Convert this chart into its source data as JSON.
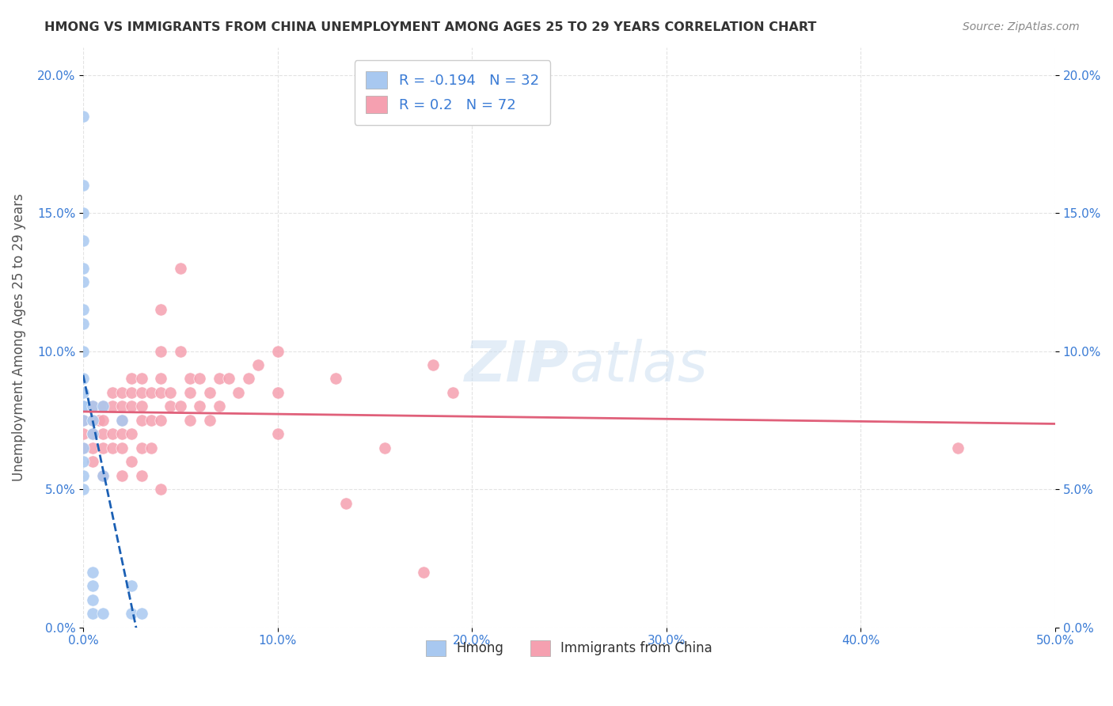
{
  "title": "HMONG VS IMMIGRANTS FROM CHINA UNEMPLOYMENT AMONG AGES 25 TO 29 YEARS CORRELATION CHART",
  "source": "Source: ZipAtlas.com",
  "xlabel": "",
  "ylabel": "Unemployment Among Ages 25 to 29 years",
  "xlim": [
    0.0,
    0.5
  ],
  "ylim": [
    0.0,
    0.21
  ],
  "xticks": [
    0.0,
    0.1,
    0.2,
    0.3,
    0.4,
    0.5
  ],
  "yticks": [
    0.0,
    0.05,
    0.1,
    0.15,
    0.2
  ],
  "xtick_labels": [
    "0.0%",
    "10.0%",
    "20.0%",
    "30.0%",
    "40.0%",
    "50.0%"
  ],
  "ytick_labels": [
    "0.0%",
    "5.0%",
    "10.0%",
    "15.0%",
    "20.0%"
  ],
  "hmong_R": -0.194,
  "hmong_N": 32,
  "china_R": 0.2,
  "china_N": 72,
  "hmong_color": "#a8c8f0",
  "china_color": "#f5a0b0",
  "hmong_line_color": "#1a5fb4",
  "china_line_color": "#e0607a",
  "background_color": "#ffffff",
  "grid_color": "#dddddd",
  "watermark_text": "ZIPatlas",
  "hmong_x": [
    0.0,
    0.0,
    0.0,
    0.0,
    0.0,
    0.0,
    0.0,
    0.0,
    0.0,
    0.0,
    0.0,
    0.0,
    0.0,
    0.0,
    0.0,
    0.0,
    0.0,
    0.0,
    0.005,
    0.005,
    0.005,
    0.005,
    0.005,
    0.005,
    0.005,
    0.01,
    0.01,
    0.01,
    0.02,
    0.025,
    0.025,
    0.03
  ],
  "hmong_y": [
    0.185,
    0.16,
    0.15,
    0.14,
    0.13,
    0.125,
    0.115,
    0.11,
    0.1,
    0.09,
    0.085,
    0.08,
    0.08,
    0.075,
    0.065,
    0.06,
    0.055,
    0.05,
    0.08,
    0.075,
    0.07,
    0.02,
    0.015,
    0.01,
    0.005,
    0.08,
    0.055,
    0.005,
    0.075,
    0.015,
    0.005,
    0.005
  ],
  "china_x": [
    0.0,
    0.0,
    0.0,
    0.005,
    0.005,
    0.005,
    0.005,
    0.005,
    0.008,
    0.01,
    0.01,
    0.01,
    0.01,
    0.01,
    0.015,
    0.015,
    0.015,
    0.015,
    0.02,
    0.02,
    0.02,
    0.02,
    0.02,
    0.02,
    0.025,
    0.025,
    0.025,
    0.025,
    0.025,
    0.03,
    0.03,
    0.03,
    0.03,
    0.03,
    0.03,
    0.035,
    0.035,
    0.035,
    0.04,
    0.04,
    0.04,
    0.04,
    0.04,
    0.04,
    0.045,
    0.045,
    0.05,
    0.05,
    0.05,
    0.055,
    0.055,
    0.055,
    0.06,
    0.06,
    0.065,
    0.065,
    0.07,
    0.07,
    0.075,
    0.08,
    0.085,
    0.09,
    0.1,
    0.1,
    0.1,
    0.13,
    0.135,
    0.155,
    0.175,
    0.18,
    0.19,
    0.45
  ],
  "china_y": [
    0.075,
    0.07,
    0.065,
    0.08,
    0.075,
    0.07,
    0.065,
    0.06,
    0.075,
    0.08,
    0.075,
    0.07,
    0.065,
    0.055,
    0.085,
    0.08,
    0.07,
    0.065,
    0.085,
    0.08,
    0.075,
    0.07,
    0.065,
    0.055,
    0.09,
    0.085,
    0.08,
    0.07,
    0.06,
    0.09,
    0.085,
    0.08,
    0.075,
    0.065,
    0.055,
    0.085,
    0.075,
    0.065,
    0.115,
    0.1,
    0.09,
    0.085,
    0.075,
    0.05,
    0.085,
    0.08,
    0.13,
    0.1,
    0.08,
    0.09,
    0.085,
    0.075,
    0.09,
    0.08,
    0.085,
    0.075,
    0.09,
    0.08,
    0.09,
    0.085,
    0.09,
    0.095,
    0.1,
    0.085,
    0.07,
    0.09,
    0.045,
    0.065,
    0.02,
    0.095,
    0.085,
    0.065
  ]
}
